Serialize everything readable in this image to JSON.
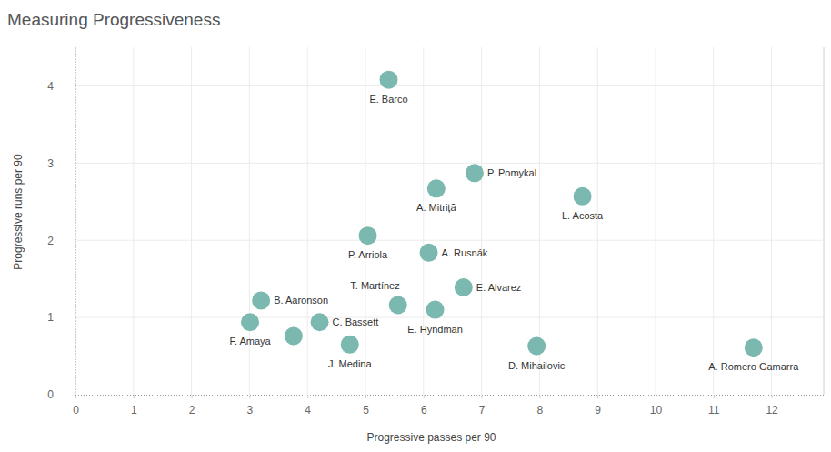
{
  "chart_data": {
    "type": "scatter",
    "title": "Measuring Progressiveness",
    "x_label": "Progressive passes per 90",
    "y_label": "Progressive runs per 90",
    "names": [
      "E. Barco",
      "P. Pomykal",
      "A. Mitriță",
      "L. Acosta",
      "P. Arriola",
      "A. Rusnák",
      "E. Alvarez",
      "T. Martínez",
      "E. Hyndman",
      "B. Aaronson",
      "C. Bassett",
      "F. Amaya",
      null,
      "J. Medina",
      "D. Mihailovic",
      "A. Romero Gamarra"
    ],
    "x": [
      5.4,
      6.88,
      6.22,
      8.74,
      5.04,
      6.09,
      6.69,
      5.56,
      6.2,
      3.2,
      4.21,
      3.01,
      3.76,
      4.73,
      7.95,
      11.69
    ],
    "y": [
      4.08,
      2.87,
      2.67,
      2.57,
      2.06,
      1.84,
      1.39,
      1.16,
      1.1,
      1.22,
      0.94,
      0.94,
      0.76,
      0.65,
      0.63,
      0.61
    ],
    "color": "#7ab8b0",
    "xlim": [
      0,
      12.9
    ],
    "ylim": [
      0,
      4.5
    ],
    "xticks": [
      0,
      1,
      2,
      3,
      4,
      5,
      6,
      7,
      8,
      9,
      10,
      11,
      12
    ],
    "yticks": [
      0,
      1,
      2,
      3,
      4
    ],
    "grid": true
  }
}
